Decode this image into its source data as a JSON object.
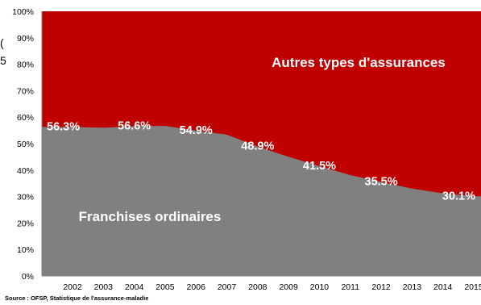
{
  "chart_data": {
    "type": "area",
    "x": [
      "2002",
      "2003",
      "2004",
      "2005",
      "2006",
      "2007",
      "2008",
      "2009",
      "2010",
      "2011",
      "2012",
      "2013",
      "2014",
      "2015"
    ],
    "series": [
      {
        "name": "Franchises ordinaires",
        "color": "#808080",
        "values": [
          56.3,
          56.0,
          56.6,
          56.7,
          54.9,
          53.4,
          48.9,
          45.0,
          41.5,
          38.1,
          35.5,
          33.0,
          31.2,
          30.1
        ]
      },
      {
        "name": "Autres types d'assurances",
        "color": "#c00000",
        "values": [
          43.7,
          44.0,
          43.4,
          43.3,
          45.1,
          46.6,
          51.1,
          55.0,
          58.5,
          61.9,
          64.5,
          67.0,
          68.8,
          69.9
        ]
      }
    ],
    "data_labels": [
      {
        "x": "2002",
        "text": "56.3%"
      },
      {
        "x": "2004",
        "text": "56.6%"
      },
      {
        "x": "2006",
        "text": "54.9%"
      },
      {
        "x": "2008",
        "text": "48.9%"
      },
      {
        "x": "2010",
        "text": "41.5%"
      },
      {
        "x": "2012",
        "text": "35.5%"
      },
      {
        "x": "2015",
        "text": "30.1%"
      }
    ],
    "x_tick_labels": [
      "2002",
      "2003",
      "2004",
      "2005",
      "2006",
      "2007",
      "2008",
      "2009",
      "2010",
      "2011",
      "2012",
      "2013",
      "2014",
      "2015"
    ],
    "y_tick_labels": [
      "0%",
      "10%",
      "20%",
      "30%",
      "40%",
      "50%",
      "60%",
      "70%",
      "80%",
      "90%",
      "100%"
    ],
    "ylim": [
      0,
      100
    ],
    "stacked": true,
    "grid": false,
    "legend": "none",
    "annotations": {
      "upper_area_label": "Autres types d'assurances",
      "lower_area_label": "Franchises ordinaires"
    },
    "source": "Source : OFSP, Statistique de l'assurance-maladie",
    "label_color": "#ffffff"
  },
  "edge_fragments": [
    "(",
    "5"
  ]
}
